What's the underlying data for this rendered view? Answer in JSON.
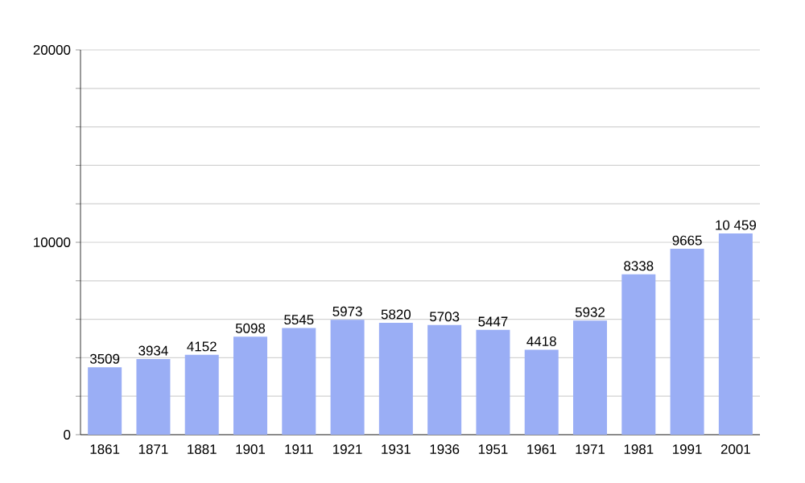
{
  "chart_data": {
    "type": "bar",
    "categories": [
      "1861",
      "1871",
      "1881",
      "1901",
      "1911",
      "1921",
      "1931",
      "1936",
      "1951",
      "1961",
      "1971",
      "1981",
      "1991",
      "2001"
    ],
    "values": [
      3509,
      3934,
      4152,
      5098,
      5545,
      5973,
      5820,
      5703,
      5447,
      4418,
      5932,
      8338,
      9665,
      10459
    ],
    "value_labels": [
      "3509",
      "3934",
      "4152",
      "5098",
      "5545",
      "5973",
      "5820",
      "5703",
      "5447",
      "4418",
      "5932",
      "8338",
      "9665",
      "10 459"
    ],
    "color": "#9aaef5",
    "ylim": [
      0,
      20000
    ],
    "yticks": [
      0,
      {
        "value": 2000,
        "label": null
      },
      {
        "value": 4000,
        "label": null
      },
      {
        "value": 6000,
        "label": null
      },
      {
        "value": 8000,
        "label": null
      },
      10000,
      {
        "value": 12000,
        "label": null
      },
      {
        "value": 14000,
        "label": null
      },
      {
        "value": 16000,
        "label": null
      },
      {
        "value": 18000,
        "label": null
      },
      20000
    ],
    "grid": "y"
  }
}
